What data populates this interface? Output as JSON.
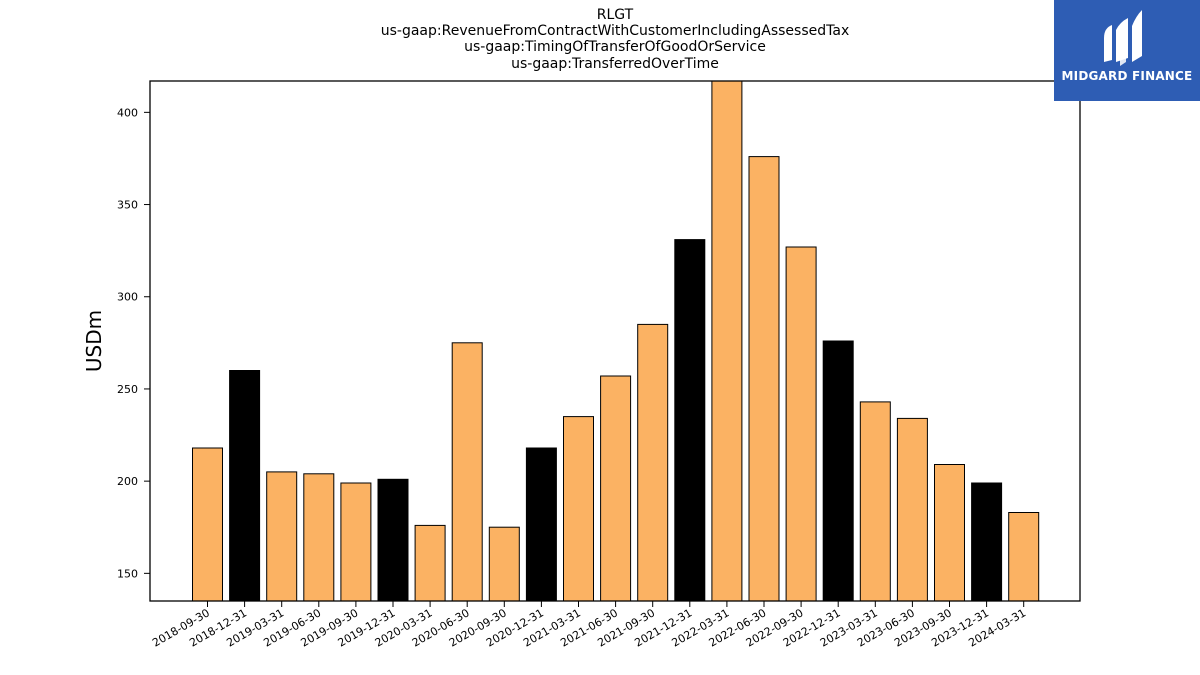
{
  "chart_data": {
    "type": "bar",
    "title_lines": [
      "RLGT",
      "us-gaap:RevenueFromContractWithCustomerIncludingAssessedTax",
      "us-gaap:TimingOfTransferOfGoodOrService",
      "us-gaap:TransferredOverTime"
    ],
    "ylabel": "USDm",
    "xlabel": "",
    "ylim": [
      135,
      417
    ],
    "yticks": [
      150,
      200,
      250,
      300,
      350,
      400
    ],
    "categories": [
      "2018-09-30",
      "2018-12-31",
      "2019-03-31",
      "2019-06-30",
      "2019-09-30",
      "2019-12-31",
      "2020-03-31",
      "2020-06-30",
      "2020-09-30",
      "2020-12-31",
      "2021-03-31",
      "2021-06-30",
      "2021-09-30",
      "2021-12-31",
      "2022-03-31",
      "2022-06-30",
      "2022-09-30",
      "2022-12-31",
      "2023-03-31",
      "2023-06-30",
      "2023-09-30",
      "2023-12-31",
      "2024-03-31"
    ],
    "values": [
      218,
      260,
      205,
      204,
      199,
      201,
      176,
      275,
      175,
      218,
      235,
      257,
      285,
      331,
      418,
      376,
      327,
      276,
      243,
      234,
      209,
      199,
      183
    ],
    "highlight": [
      false,
      true,
      false,
      false,
      false,
      true,
      false,
      false,
      false,
      true,
      false,
      false,
      false,
      true,
      false,
      false,
      false,
      true,
      false,
      false,
      false,
      true,
      false
    ],
    "colors": {
      "bar": "#fbb263",
      "highlight": "#000000",
      "edge": "#000000"
    }
  },
  "logo": {
    "text": "MIDGARD FINANCE",
    "bg": "#2e5db4"
  }
}
